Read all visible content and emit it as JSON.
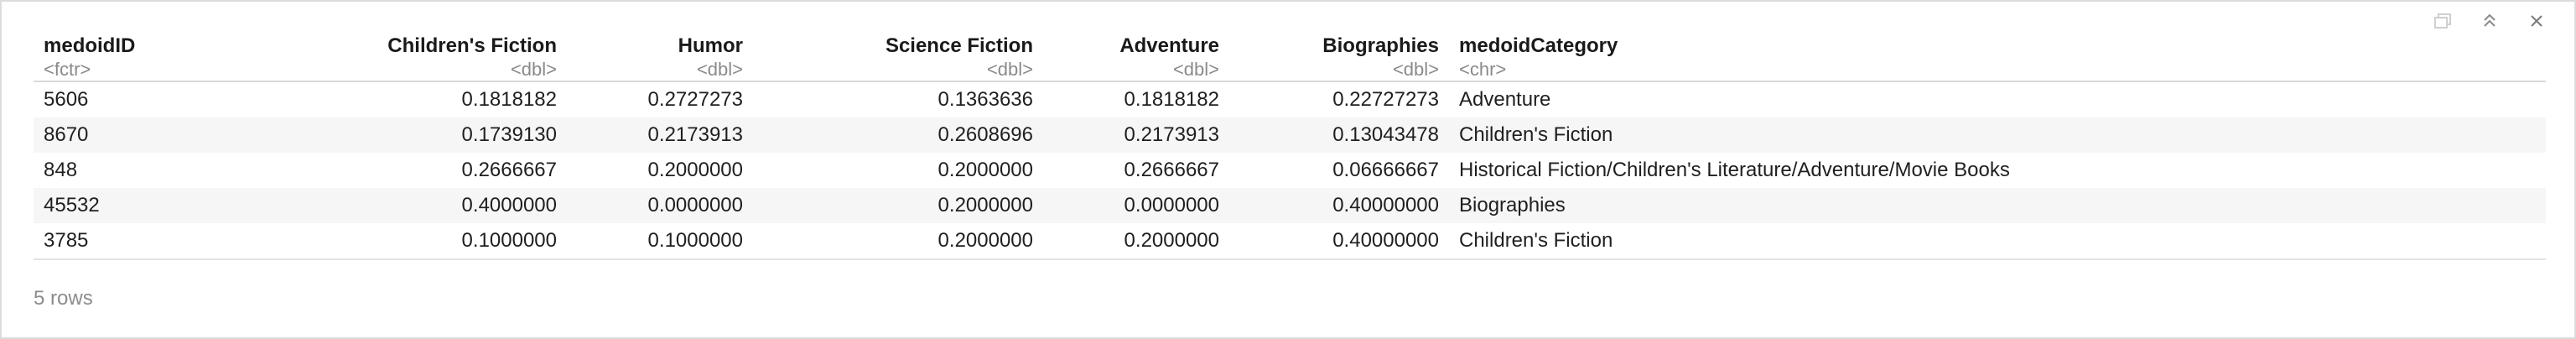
{
  "table": {
    "columns": [
      {
        "name": "medoidID",
        "type": "<fctr>"
      },
      {
        "name": "Children's Fiction",
        "type": "<dbl>"
      },
      {
        "name": "Humor",
        "type": "<dbl>"
      },
      {
        "name": "Science Fiction",
        "type": "<dbl>"
      },
      {
        "name": "Adventure",
        "type": "<dbl>"
      },
      {
        "name": "Biographies",
        "type": "<dbl>"
      },
      {
        "name": "medoidCategory",
        "type": "<chr>"
      }
    ],
    "rows": [
      [
        "5606",
        "0.1818182",
        "0.2727273",
        "0.1363636",
        "0.1818182",
        "0.22727273",
        "Adventure"
      ],
      [
        "8670",
        "0.1739130",
        "0.2173913",
        "0.2608696",
        "0.2173913",
        "0.13043478",
        "Children's Fiction"
      ],
      [
        "848",
        "0.2666667",
        "0.2000000",
        "0.2000000",
        "0.2666667",
        "0.06666667",
        "Historical Fiction/Children's Literature/Adventure/Movie Books"
      ],
      [
        "45532",
        "0.4000000",
        "0.0000000",
        "0.2000000",
        "0.0000000",
        "0.40000000",
        "Biographies"
      ],
      [
        "3785",
        "0.1000000",
        "0.1000000",
        "0.2000000",
        "0.2000000",
        "0.40000000",
        "Children's Fiction"
      ]
    ]
  },
  "footer": {
    "row_count": "5 rows"
  },
  "toolbar": {
    "icons": [
      "export-icon",
      "collapse-icon",
      "close-icon"
    ]
  }
}
